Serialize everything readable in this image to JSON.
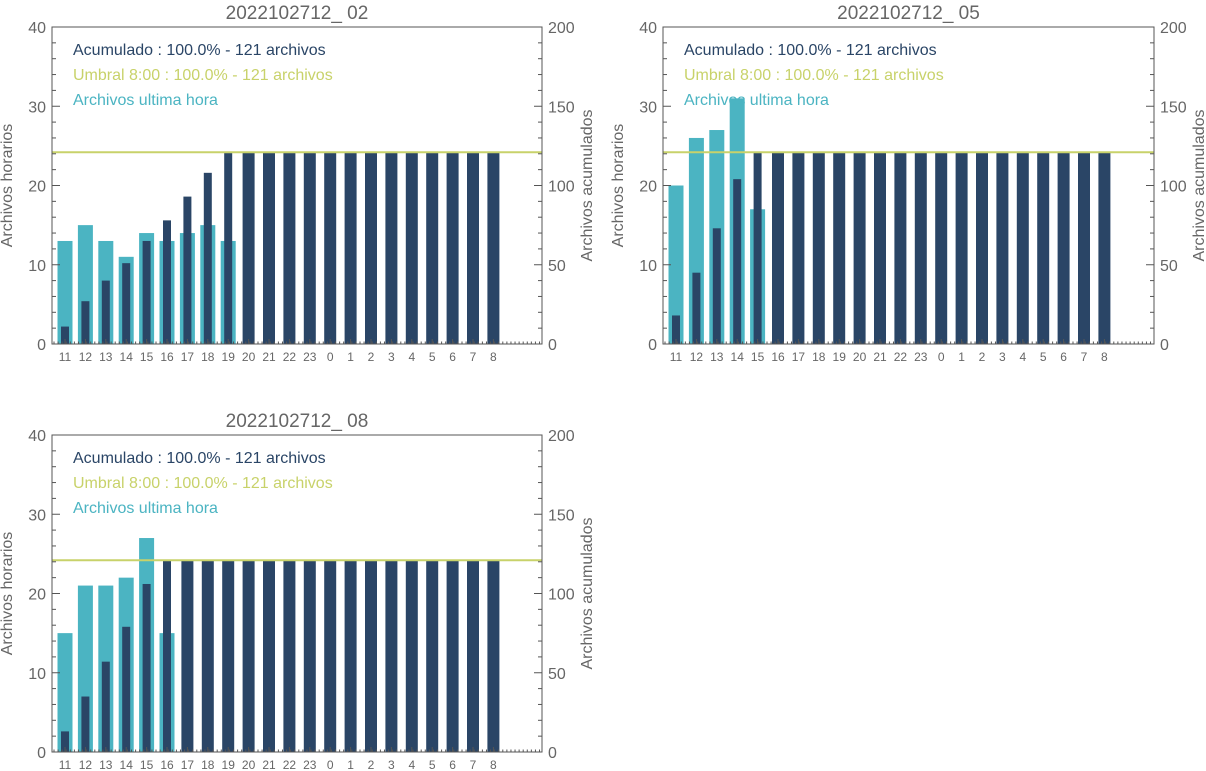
{
  "colors": {
    "hourly": "#4bb4c2",
    "cumulative": "#2a4566",
    "threshold": "#c8d26a",
    "axis": "#555555",
    "text": "#666666"
  },
  "chart_data": [
    {
      "type": "bar",
      "title": "2022102712_ 02",
      "ylabel": "Archivos horarios",
      "y2label": "Archivos acumulados",
      "ylim": [
        0,
        40
      ],
      "y2lim": [
        0,
        200
      ],
      "yticks": [
        0,
        10,
        20,
        30,
        40
      ],
      "y2ticks": [
        0,
        50,
        100,
        150,
        200
      ],
      "categories": [
        "11",
        "12",
        "13",
        "14",
        "15",
        "16",
        "17",
        "18",
        "19",
        "20",
        "21",
        "22",
        "23",
        "0",
        "1",
        "2",
        "3",
        "4",
        "5",
        "6",
        "7",
        "8"
      ],
      "legend": {
        "cumulative": "Acumulado : 100.0% - 121 archivos",
        "threshold": "Umbral 8:00 : 100.0% - 121 archivos",
        "hourly": "Archivos ultima hora"
      },
      "series": [
        {
          "name": "Archivos ultima hora",
          "axis": "left",
          "values": [
            13,
            15,
            13,
            11,
            14,
            13,
            14,
            15,
            13,
            null,
            null,
            null,
            null,
            null,
            null,
            null,
            null,
            null,
            null,
            null,
            null,
            null
          ]
        },
        {
          "name": "Acumulado",
          "axis": "right",
          "values": [
            11,
            27,
            40,
            51,
            65,
            78,
            93,
            108,
            121,
            121,
            121,
            121,
            121,
            121,
            121,
            121,
            121,
            121,
            121,
            121,
            121,
            121
          ]
        }
      ],
      "threshold": 121
    },
    {
      "type": "bar",
      "title": "2022102712_ 05",
      "ylabel": "Archivos horarios",
      "y2label": "Archivos acumulados",
      "ylim": [
        0,
        40
      ],
      "y2lim": [
        0,
        200
      ],
      "yticks": [
        0,
        10,
        20,
        30,
        40
      ],
      "y2ticks": [
        0,
        50,
        100,
        150,
        200
      ],
      "categories": [
        "11",
        "12",
        "13",
        "14",
        "15",
        "16",
        "17",
        "18",
        "19",
        "20",
        "21",
        "22",
        "23",
        "0",
        "1",
        "2",
        "3",
        "4",
        "5",
        "6",
        "7",
        "8"
      ],
      "legend": {
        "cumulative": "Acumulado : 100.0% - 121 archivos",
        "threshold": "Umbral 8:00 : 100.0% - 121 archivos",
        "hourly": "Archivos ultima hora"
      },
      "series": [
        {
          "name": "Archivos ultima hora",
          "axis": "left",
          "values": [
            20,
            26,
            27,
            31,
            17,
            null,
            null,
            null,
            null,
            null,
            null,
            null,
            null,
            null,
            null,
            null,
            null,
            null,
            null,
            null,
            null,
            null
          ]
        },
        {
          "name": "Acumulado",
          "axis": "right",
          "values": [
            18,
            45,
            73,
            104,
            121,
            121,
            121,
            121,
            121,
            121,
            121,
            121,
            121,
            121,
            121,
            121,
            121,
            121,
            121,
            121,
            121,
            121
          ]
        }
      ],
      "threshold": 121
    },
    {
      "type": "bar",
      "title": "2022102712_ 08",
      "ylabel": "Archivos horarios",
      "y2label": "Archivos acumulados",
      "ylim": [
        0,
        40
      ],
      "y2lim": [
        0,
        200
      ],
      "yticks": [
        0,
        10,
        20,
        30,
        40
      ],
      "y2ticks": [
        0,
        50,
        100,
        150,
        200
      ],
      "categories": [
        "11",
        "12",
        "13",
        "14",
        "15",
        "16",
        "17",
        "18",
        "19",
        "20",
        "21",
        "22",
        "23",
        "0",
        "1",
        "2",
        "3",
        "4",
        "5",
        "6",
        "7",
        "8"
      ],
      "legend": {
        "cumulative": "Acumulado : 100.0% - 121 archivos",
        "threshold": "Umbral 8:00 : 100.0% - 121 archivos",
        "hourly": "Archivos ultima hora"
      },
      "series": [
        {
          "name": "Archivos ultima hora",
          "axis": "left",
          "values": [
            15,
            21,
            21,
            22,
            27,
            15,
            null,
            null,
            null,
            null,
            null,
            null,
            null,
            null,
            null,
            null,
            null,
            null,
            null,
            null,
            null,
            null
          ]
        },
        {
          "name": "Acumulado",
          "axis": "right",
          "values": [
            13,
            35,
            57,
            79,
            106,
            121,
            121,
            121,
            121,
            121,
            121,
            121,
            121,
            121,
            121,
            121,
            121,
            121,
            121,
            121,
            121,
            121
          ]
        }
      ],
      "threshold": 121
    }
  ]
}
